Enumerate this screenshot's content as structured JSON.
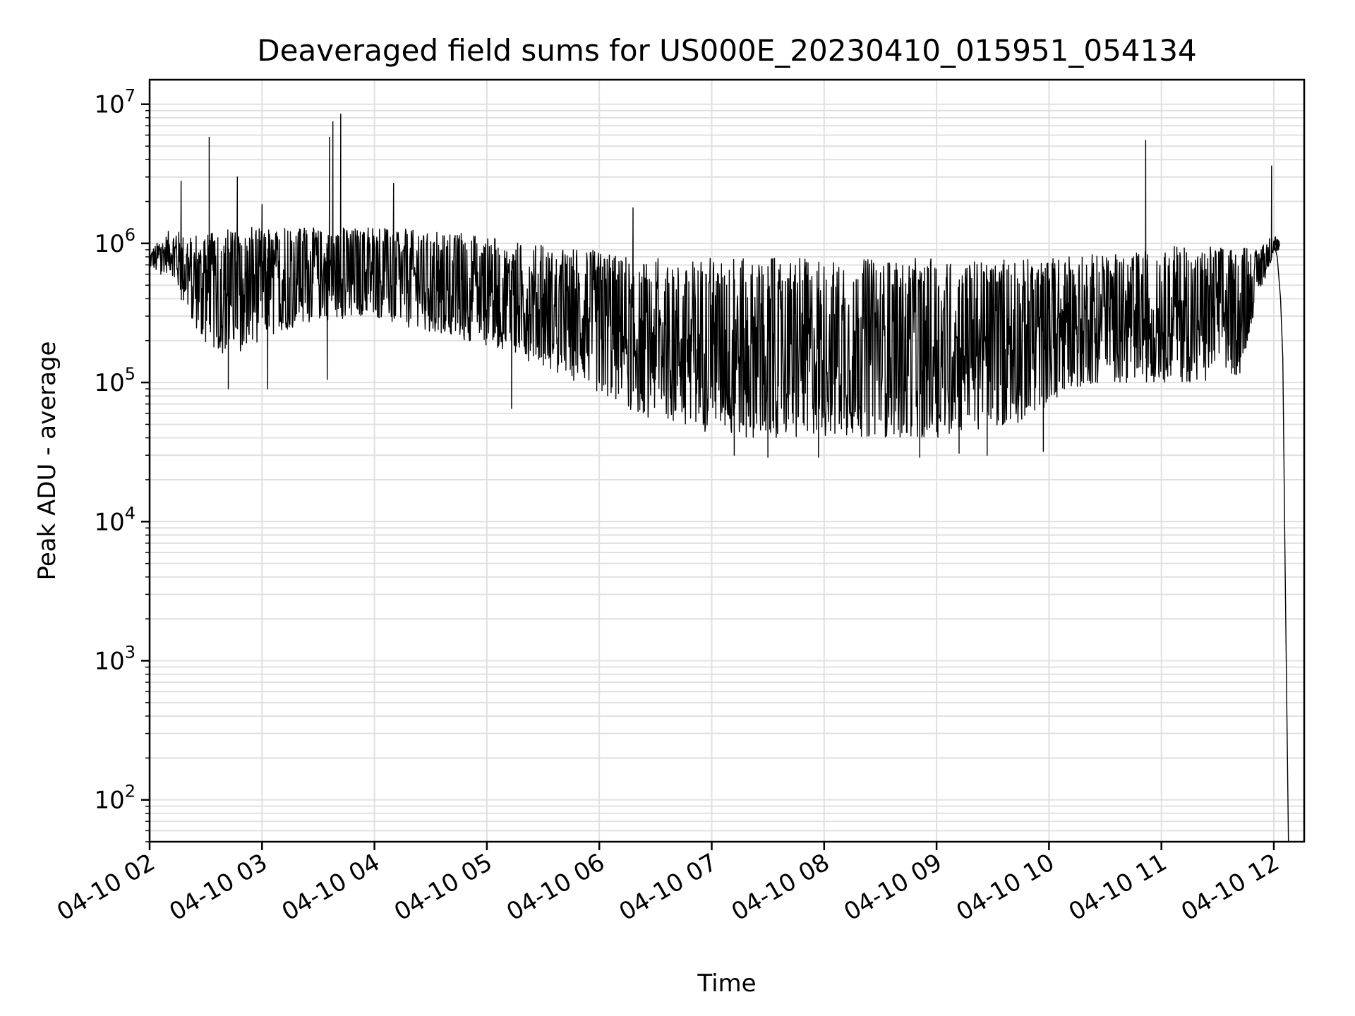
{
  "chart_data": {
    "type": "line",
    "title": "Deaveraged field sums for US000E_20230410_015951_054134",
    "xlabel": "Time",
    "ylabel": "Peak ADU - average",
    "yscale": "log",
    "ylim": [
      50,
      15000000
    ],
    "xlim_hours": [
      2.0,
      12.27
    ],
    "grid": true,
    "x_tick_labels": [
      "04-10 02",
      "04-10 03",
      "04-10 04",
      "04-10 05",
      "04-10 06",
      "04-10 07",
      "04-10 08",
      "04-10 09",
      "04-10 10",
      "04-10 11",
      "04-10 12"
    ],
    "x_tick_hours": [
      2,
      3,
      4,
      5,
      6,
      7,
      8,
      9,
      10,
      11,
      12
    ],
    "y_tick_values": [
      100,
      1000,
      10000,
      100000,
      1000000,
      10000000
    ],
    "y_tick_labels": [
      {
        "base": "10",
        "exp": "2"
      },
      {
        "base": "10",
        "exp": "3"
      },
      {
        "base": "10",
        "exp": "4"
      },
      {
        "base": "10",
        "exp": "5"
      },
      {
        "base": "10",
        "exp": "6"
      },
      {
        "base": "10",
        "exp": "7"
      }
    ],
    "line_color": "#000000",
    "series": [
      {
        "envelope": {
          "x": [
            2.0,
            2.2,
            2.3,
            2.5,
            2.7,
            3.0,
            3.3,
            3.6,
            3.9,
            4.2,
            4.5,
            4.8,
            5.1,
            5.4,
            5.7,
            6.0,
            6.3,
            6.6,
            6.9,
            7.2,
            7.5,
            7.8,
            8.1,
            8.4,
            8.7,
            9.0,
            9.3,
            9.6,
            9.9,
            10.2,
            10.5,
            10.8,
            11.1,
            11.4,
            11.7,
            11.85,
            12.0,
            12.05
          ],
          "low": [
            650000,
            600000,
            350000,
            180000,
            150000,
            200000,
            250000,
            280000,
            300000,
            250000,
            230000,
            200000,
            170000,
            140000,
            110000,
            80000,
            60000,
            50000,
            45000,
            40000,
            40000,
            40000,
            40000,
            40000,
            40000,
            40000,
            45000,
            45000,
            60000,
            90000,
            100000,
            100000,
            100000,
            100000,
            110000,
            400000,
            800000,
            900000
          ],
          "high": [
            900000,
            1300000,
            1200000,
            1200000,
            1300000,
            1300000,
            1300000,
            1300000,
            1300000,
            1300000,
            1200000,
            1200000,
            1100000,
            1000000,
            900000,
            900000,
            800000,
            780000,
            780000,
            780000,
            780000,
            780000,
            780000,
            780000,
            780000,
            780000,
            780000,
            780000,
            780000,
            800000,
            850000,
            900000,
            950000,
            1000000,
            950000,
            900000,
            1200000,
            1050000
          ]
        },
        "spikes": [
          {
            "x": 2.1,
            "y": 600000
          },
          {
            "x": 2.28,
            "y": 2800000
          },
          {
            "x": 2.53,
            "y": 5800000
          },
          {
            "x": 2.78,
            "y": 3000000
          },
          {
            "x": 3.0,
            "y": 1900000
          },
          {
            "x": 3.6,
            "y": 5800000
          },
          {
            "x": 3.63,
            "y": 7500000
          },
          {
            "x": 3.7,
            "y": 8500000
          },
          {
            "x": 4.17,
            "y": 2700000
          },
          {
            "x": 6.3,
            "y": 1800000
          },
          {
            "x": 10.86,
            "y": 5500000
          },
          {
            "x": 11.98,
            "y": 3600000
          }
        ],
        "dips": [
          {
            "x": 2.7,
            "y": 90000
          },
          {
            "x": 3.05,
            "y": 90000
          },
          {
            "x": 3.58,
            "y": 105000
          },
          {
            "x": 5.22,
            "y": 65000
          },
          {
            "x": 7.2,
            "y": 30000
          },
          {
            "x": 7.5,
            "y": 29000
          },
          {
            "x": 7.95,
            "y": 29000
          },
          {
            "x": 8.85,
            "y": 29000
          },
          {
            "x": 9.2,
            "y": 31000
          },
          {
            "x": 9.45,
            "y": 30000
          },
          {
            "x": 9.95,
            "y": 32000
          }
        ],
        "tail": {
          "x": [
            12.0,
            12.03,
            12.06,
            12.08,
            12.1,
            12.13
          ],
          "y": [
            1000000,
            800000,
            400000,
            150000,
            5000,
            50
          ]
        }
      }
    ]
  }
}
